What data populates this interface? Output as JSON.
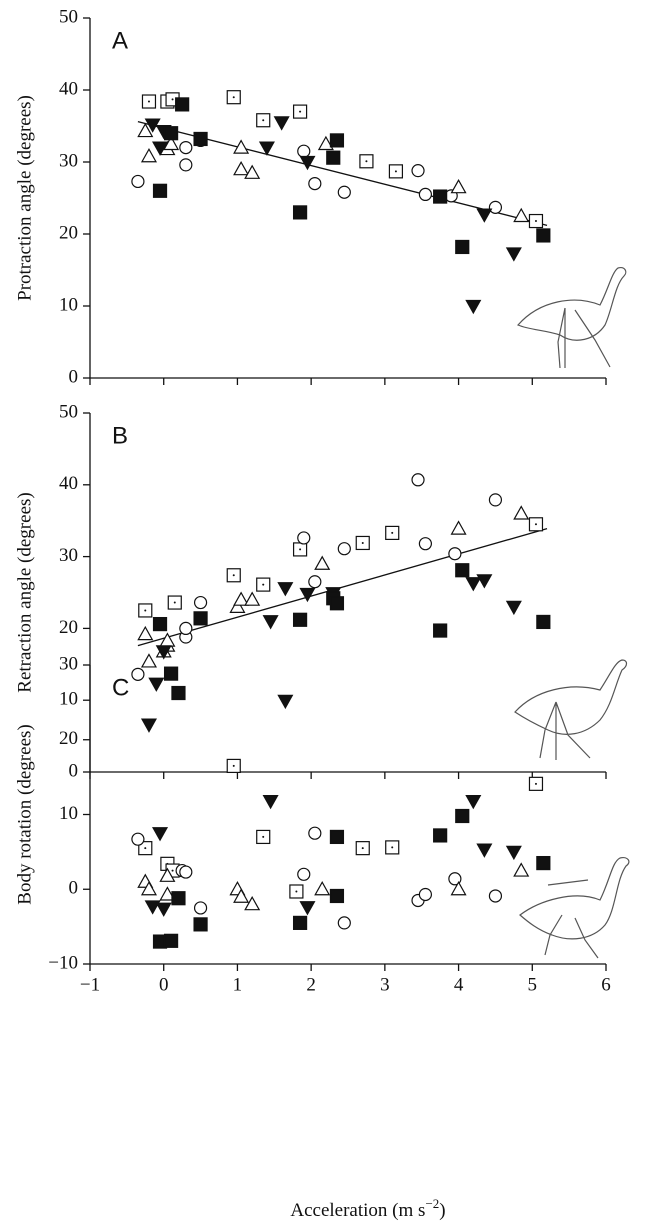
{
  "chart_data": [
    {
      "type": "scatter",
      "panel": "A",
      "y_label": "Protraction angle (degrees)",
      "ylim": [
        0,
        50
      ],
      "yticks": [
        0,
        10,
        20,
        30,
        40,
        50
      ],
      "series": [
        {
          "marker": "square",
          "filled": false,
          "color": "#111",
          "x": [
            -0.2,
            0.05,
            0.12,
            0.95,
            1.35,
            1.85,
            2.75,
            3.15,
            5.05
          ],
          "values": [
            38.4,
            38.4,
            38.7,
            39,
            35.8,
            37,
            30.1,
            28.7,
            21.8
          ]
        },
        {
          "marker": "circle",
          "filled": false,
          "color": "#111",
          "x": [
            -0.35,
            0.3,
            0.3,
            0.5,
            1.9,
            2.05,
            2.45,
            3.45,
            3.55,
            3.9,
            4.5
          ],
          "values": [
            27.3,
            29.6,
            32,
            33,
            31.5,
            27,
            25.8,
            28.8,
            25.5,
            25.3,
            23.7
          ]
        },
        {
          "marker": "triangle-up",
          "filled": false,
          "color": "#111",
          "x": [
            -0.25,
            -0.2,
            0.05,
            0.1,
            1.05,
            1.05,
            1.2,
            2.2,
            4.0,
            4.85
          ],
          "values": [
            34.3,
            30.8,
            31.8,
            32.5,
            32,
            29,
            28.5,
            32.5,
            26.5,
            22.5
          ]
        },
        {
          "marker": "triangle-down",
          "filled": true,
          "color": "#111",
          "x": [
            -0.15,
            -0.05,
            0.0,
            1.4,
            1.6,
            1.95,
            4.2,
            4.35,
            4.75
          ],
          "values": [
            35.2,
            32,
            34.3,
            32,
            35.5,
            30,
            10,
            22.7,
            17.3
          ]
        },
        {
          "marker": "square",
          "filled": true,
          "color": "#111",
          "x": [
            -0.05,
            0.1,
            0.25,
            0.5,
            1.85,
            2.3,
            2.35,
            3.75,
            4.05,
            5.15
          ],
          "values": [
            26,
            34,
            38,
            33.2,
            23,
            30.6,
            33,
            25.2,
            18.2,
            19.8
          ]
        }
      ],
      "trend": {
        "x": [
          -0.35,
          5.2
        ],
        "values": [
          35.6,
          21.2
        ]
      }
    },
    {
      "type": "scatter",
      "panel": "B",
      "y_label": "Retraction angle (degrees)",
      "ylim": [
        0,
        50
      ],
      "yticks": [
        0,
        10,
        20,
        30,
        40,
        50
      ],
      "series": [
        {
          "marker": "square",
          "filled": false,
          "color": "#111",
          "x": [
            -0.25,
            0.15,
            0.95,
            1.35,
            1.85,
            2.7,
            3.1,
            5.05
          ],
          "values": [
            22.5,
            23.6,
            27.4,
            26.1,
            31,
            31.9,
            33.3,
            34.5
          ]
        },
        {
          "marker": "circle",
          "filled": false,
          "color": "#111",
          "x": [
            -0.35,
            0.3,
            0.3,
            0.5,
            1.9,
            2.05,
            2.45,
            3.45,
            3.55,
            3.95,
            4.5
          ],
          "values": [
            13.6,
            18.8,
            20,
            23.6,
            32.6,
            26.5,
            31.1,
            40.7,
            31.8,
            30.4,
            37.9
          ]
        },
        {
          "marker": "triangle-up",
          "filled": false,
          "color": "#111",
          "x": [
            -0.25,
            -0.2,
            0.0,
            0.05,
            0.05,
            1.0,
            1.05,
            1.2,
            2.15,
            4.0,
            4.85
          ],
          "values": [
            19.2,
            15.4,
            16.8,
            17.6,
            18.3,
            23,
            24,
            24,
            29,
            33.9,
            36
          ]
        },
        {
          "marker": "triangle-down",
          "filled": true,
          "color": "#111",
          "x": [
            -0.2,
            -0.1,
            0.0,
            1.45,
            1.65,
            1.95,
            2.3,
            4.2,
            4.35,
            4.75
          ],
          "values": [
            6.6,
            12.3,
            16.8,
            21,
            25.6,
            24.8,
            24.9,
            26.3,
            26.7,
            23
          ]
        },
        {
          "marker": "square",
          "filled": true,
          "color": "#111",
          "x": [
            -0.05,
            0.1,
            0.2,
            0.5,
            1.85,
            2.3,
            2.35,
            3.75,
            4.05,
            5.15
          ],
          "values": [
            20.6,
            13.7,
            11,
            21.4,
            21.2,
            24.2,
            23.5,
            19.7,
            28.1,
            20.9
          ]
        }
      ],
      "trend": {
        "x": [
          -0.35,
          5.2
        ],
        "values": [
          17.6,
          33.9
        ]
      }
    },
    {
      "type": "scatter",
      "panel": "C",
      "y_label": "Body rotation (degrees)",
      "x_label": "Acceleration (m s",
      "x_label_sup": "−2",
      "x_label_end": ")",
      "xlim": [
        -1,
        6
      ],
      "xticks": [
        {
          "value": -1,
          "label": "−1"
        },
        0,
        1,
        2,
        3,
        4,
        5,
        6
      ],
      "ylim": [
        -10,
        30
      ],
      "yticks": [
        {
          "value": -10,
          "label": "−10"
        },
        0,
        10,
        20,
        30
      ],
      "series": [
        {
          "marker": "square",
          "filled": false,
          "color": "#111",
          "x": [
            -0.25,
            0.05,
            0.12,
            0.95,
            1.35,
            1.8,
            2.7,
            3.1,
            5.05
          ],
          "values": [
            5.5,
            3.4,
            2.5,
            16.5,
            7,
            -0.3,
            5.5,
            5.6,
            14.1
          ]
        },
        {
          "marker": "circle",
          "filled": false,
          "color": "#111",
          "x": [
            -0.35,
            0.25,
            0.3,
            0.5,
            1.9,
            2.05,
            2.45,
            3.45,
            3.55,
            3.95,
            4.5
          ],
          "values": [
            6.7,
            2.5,
            2.3,
            -2.5,
            2,
            7.5,
            -4.5,
            -1.5,
            -0.7,
            1.4,
            -0.9
          ]
        },
        {
          "marker": "triangle-up",
          "filled": false,
          "color": "#111",
          "x": [
            -0.25,
            -0.2,
            0.05,
            0.05,
            1.0,
            1.05,
            1.2,
            2.15,
            4.0,
            4.85
          ],
          "values": [
            1,
            0,
            -0.7,
            1.8,
            0,
            -1,
            -2,
            0,
            0,
            2.5
          ]
        },
        {
          "marker": "triangle-down",
          "filled": true,
          "color": "#111",
          "x": [
            -0.15,
            -0.05,
            0.0,
            1.45,
            1.65,
            1.95,
            4.2,
            4.35,
            4.75
          ],
          "values": [
            -2.3,
            7.5,
            -2.6,
            11.8,
            25.2,
            -2.4,
            11.8,
            5.3,
            5
          ]
        },
        {
          "marker": "square",
          "filled": true,
          "color": "#111",
          "x": [
            -0.05,
            0.1,
            0.2,
            0.5,
            1.85,
            2.35,
            2.35,
            3.75,
            4.05,
            5.15
          ],
          "values": [
            -7,
            -6.9,
            -1.2,
            -4.7,
            -4.5,
            -0.9,
            7,
            7.2,
            9.8,
            3.5
          ]
        }
      ]
    }
  ]
}
